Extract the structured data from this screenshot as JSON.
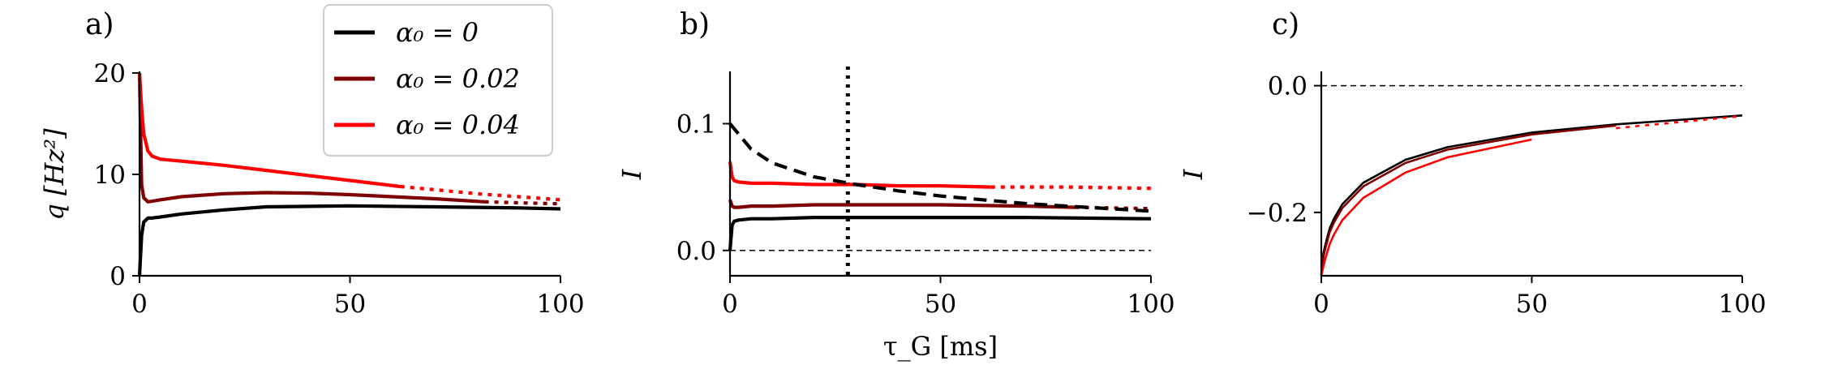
{
  "chart_data": [
    {
      "panel_label": "a)",
      "type": "line",
      "ylabel": "q [Hz²]",
      "xlim": [
        0,
        100
      ],
      "ylim": [
        0,
        20
      ],
      "xticks": [
        0,
        50,
        100
      ],
      "yticks": [
        0,
        10,
        20
      ],
      "xtick_labels": [
        "0",
        "50",
        "100"
      ],
      "ytick_labels": [
        "0",
        "10",
        "20"
      ],
      "legend": {
        "location": "top-right",
        "entries": [
          {
            "label": "α₀ = 0",
            "color": "#000000"
          },
          {
            "label": "α₀ = 0.02",
            "color": "#7f0000"
          },
          {
            "label": "α₀ = 0.04",
            "color": "#ff0000"
          }
        ]
      },
      "series": [
        {
          "name": "α₀ = 0",
          "color": "#000000",
          "solid_until": 100,
          "x": [
            0,
            0.5,
            1,
            2,
            3,
            5,
            10,
            20,
            30,
            50,
            70,
            90,
            100
          ],
          "y": [
            0,
            4.0,
            5.3,
            5.7,
            5.7,
            5.8,
            6.1,
            6.5,
            6.8,
            6.9,
            6.8,
            6.7,
            6.6
          ]
        },
        {
          "name": "α₀ = 0.02",
          "color": "#7f0000",
          "solid_until": 82,
          "x": [
            0,
            0.5,
            1,
            2,
            3,
            5,
            10,
            20,
            30,
            40,
            50,
            60,
            70,
            82,
            90,
            100
          ],
          "y": [
            20,
            9.0,
            7.7,
            7.3,
            7.35,
            7.5,
            7.8,
            8.1,
            8.2,
            8.15,
            8.0,
            7.8,
            7.6,
            7.3,
            7.2,
            7.1
          ]
        },
        {
          "name": "α₀ = 0.04",
          "color": "#ff0000",
          "solid_until": 62,
          "x": [
            0,
            0.5,
            1,
            2,
            3,
            5,
            10,
            20,
            30,
            40,
            50,
            62,
            70,
            80,
            90,
            100
          ],
          "y": [
            20,
            16.5,
            14.0,
            12.3,
            11.8,
            11.5,
            11.3,
            10.9,
            10.4,
            9.9,
            9.4,
            8.8,
            8.5,
            8.1,
            7.8,
            7.5
          ]
        }
      ]
    },
    {
      "panel_label": "b)",
      "type": "line",
      "xlabel": "τ_G [ms]",
      "ylabel": "I",
      "xlim": [
        0,
        100
      ],
      "ylim": [
        -0.02,
        0.14
      ],
      "xticks": [
        0,
        50,
        100
      ],
      "yticks": [
        0.0,
        0.1
      ],
      "xtick_labels": [
        "0",
        "50",
        "100"
      ],
      "ytick_labels": [
        "0.0",
        "0.1"
      ],
      "reference_lines": [
        {
          "orientation": "horizontal",
          "value": 0.0,
          "style": "dashed",
          "width": "thin"
        },
        {
          "orientation": "vertical",
          "value": 28,
          "style": "dotted",
          "width": "thick"
        }
      ],
      "series": [
        {
          "name": "α₀ = 0",
          "color": "#000000",
          "solid_until": 100,
          "x": [
            0,
            0.5,
            1,
            2,
            5,
            10,
            20,
            30,
            50,
            70,
            100
          ],
          "y": [
            0,
            0.02,
            0.023,
            0.024,
            0.025,
            0.025,
            0.026,
            0.026,
            0.026,
            0.026,
            0.025
          ]
        },
        {
          "name": "α₀ = 0.02",
          "color": "#7f0000",
          "solid_until": 82,
          "x": [
            0,
            0.5,
            1,
            2,
            5,
            10,
            20,
            30,
            50,
            70,
            82,
            100
          ],
          "y": [
            0.04,
            0.035,
            0.034,
            0.034,
            0.035,
            0.035,
            0.036,
            0.036,
            0.036,
            0.035,
            0.034,
            0.033
          ]
        },
        {
          "name": "α₀ = 0.04",
          "color": "#ff0000",
          "solid_until": 62,
          "x": [
            0,
            0.5,
            1,
            2,
            5,
            10,
            20,
            30,
            40,
            50,
            62,
            80,
            100
          ],
          "y": [
            0.07,
            0.058,
            0.055,
            0.054,
            0.053,
            0.053,
            0.052,
            0.052,
            0.051,
            0.051,
            0.05,
            0.05,
            0.049
          ]
        },
        {
          "name": "",
          "color": "#000000",
          "style": "dashed",
          "x": [
            0,
            5,
            10,
            20,
            30,
            40,
            50,
            60,
            70,
            80,
            90,
            100
          ],
          "y": [
            0.1,
            0.08,
            0.069,
            0.058,
            0.052,
            0.047,
            0.043,
            0.04,
            0.037,
            0.035,
            0.033,
            0.031
          ]
        }
      ]
    },
    {
      "panel_label": "c)",
      "type": "line",
      "ylabel": "I",
      "xlim": [
        0,
        100
      ],
      "ylim": [
        -0.3,
        0.02
      ],
      "xticks": [
        0,
        50,
        100
      ],
      "yticks": [
        -0.2,
        0.0
      ],
      "xtick_labels": [
        "0",
        "50",
        "100"
      ],
      "ytick_labels": [
        "−0.2",
        "0.0"
      ],
      "reference_lines": [
        {
          "orientation": "horizontal",
          "value": 0.0,
          "style": "dashed",
          "width": "thin"
        }
      ],
      "series": [
        {
          "name": "α₀ = 0",
          "color": "#000000",
          "solid_until": 100,
          "x": [
            0,
            0.5,
            1,
            2,
            3,
            5,
            10,
            20,
            30,
            50,
            70,
            100
          ],
          "y": [
            -0.3,
            -0.265,
            -0.25,
            -0.225,
            -0.21,
            -0.187,
            -0.153,
            -0.117,
            -0.097,
            -0.074,
            -0.061,
            -0.047
          ]
        },
        {
          "name": "α₀ = 0.02",
          "color": "#7f0000",
          "solid_until": 82,
          "x": [
            0,
            0.5,
            1,
            2,
            3,
            5,
            10,
            20,
            30,
            50,
            70,
            100
          ],
          "y": [
            -0.3,
            -0.27,
            -0.256,
            -0.231,
            -0.216,
            -0.193,
            -0.159,
            -0.122,
            -0.101,
            -0.077,
            -0.063,
            -0.047
          ]
        },
        {
          "name": "α₀ = 0.04",
          "color": "#ff0000",
          "solid_until": 62,
          "x": [
            0,
            0.5,
            1,
            2,
            3,
            5,
            10,
            20,
            30,
            50,
            70,
            100
          ],
          "y": [
            -0.3,
            -0.285,
            -0.272,
            -0.25,
            -0.235,
            -0.212,
            -0.177,
            -0.137,
            -0.113,
            -0.085,
            -0.067,
            -0.048
          ]
        }
      ]
    }
  ]
}
